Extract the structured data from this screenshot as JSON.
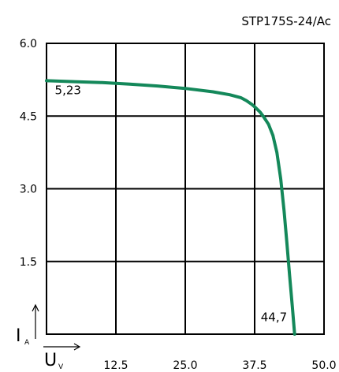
{
  "chart_data": {
    "type": "line",
    "title": "STP175S-24/Ac",
    "xlabel": "U",
    "xlabel_subscript": "V",
    "ylabel": "I",
    "ylabel_subscript": "A",
    "xlim": [
      0,
      50
    ],
    "ylim": [
      0,
      6
    ],
    "x_ticks": [
      "12.5",
      "25.0",
      "37.5",
      "50.0"
    ],
    "x_tick_values": [
      12.5,
      25.0,
      37.5,
      50.0
    ],
    "y_ticks": [
      "1.5",
      "3.0",
      "4.5",
      "6.0"
    ],
    "y_tick_values": [
      1.5,
      3.0,
      4.5,
      6.0
    ],
    "grid": true,
    "line_color": "#14885a",
    "series": [
      {
        "x": [
          0,
          5,
          10,
          15,
          20,
          25,
          30,
          33,
          35,
          36,
          37,
          37.7,
          38.5,
          39.2,
          40.0,
          40.8,
          41.5,
          42.2,
          42.8,
          43.3,
          43.8,
          44.3,
          44.7
        ],
        "values": [
          5.23,
          5.21,
          5.19,
          5.16,
          5.12,
          5.07,
          5.0,
          4.94,
          4.88,
          4.82,
          4.74,
          4.67,
          4.58,
          4.47,
          4.33,
          4.1,
          3.75,
          3.2,
          2.55,
          1.9,
          1.2,
          0.55,
          0.0
        ]
      }
    ],
    "annotations": [
      {
        "text": "5,23",
        "x": 1.5,
        "y": 4.95
      },
      {
        "text": "44,7",
        "x": 38.6,
        "y": 0.27
      }
    ]
  }
}
